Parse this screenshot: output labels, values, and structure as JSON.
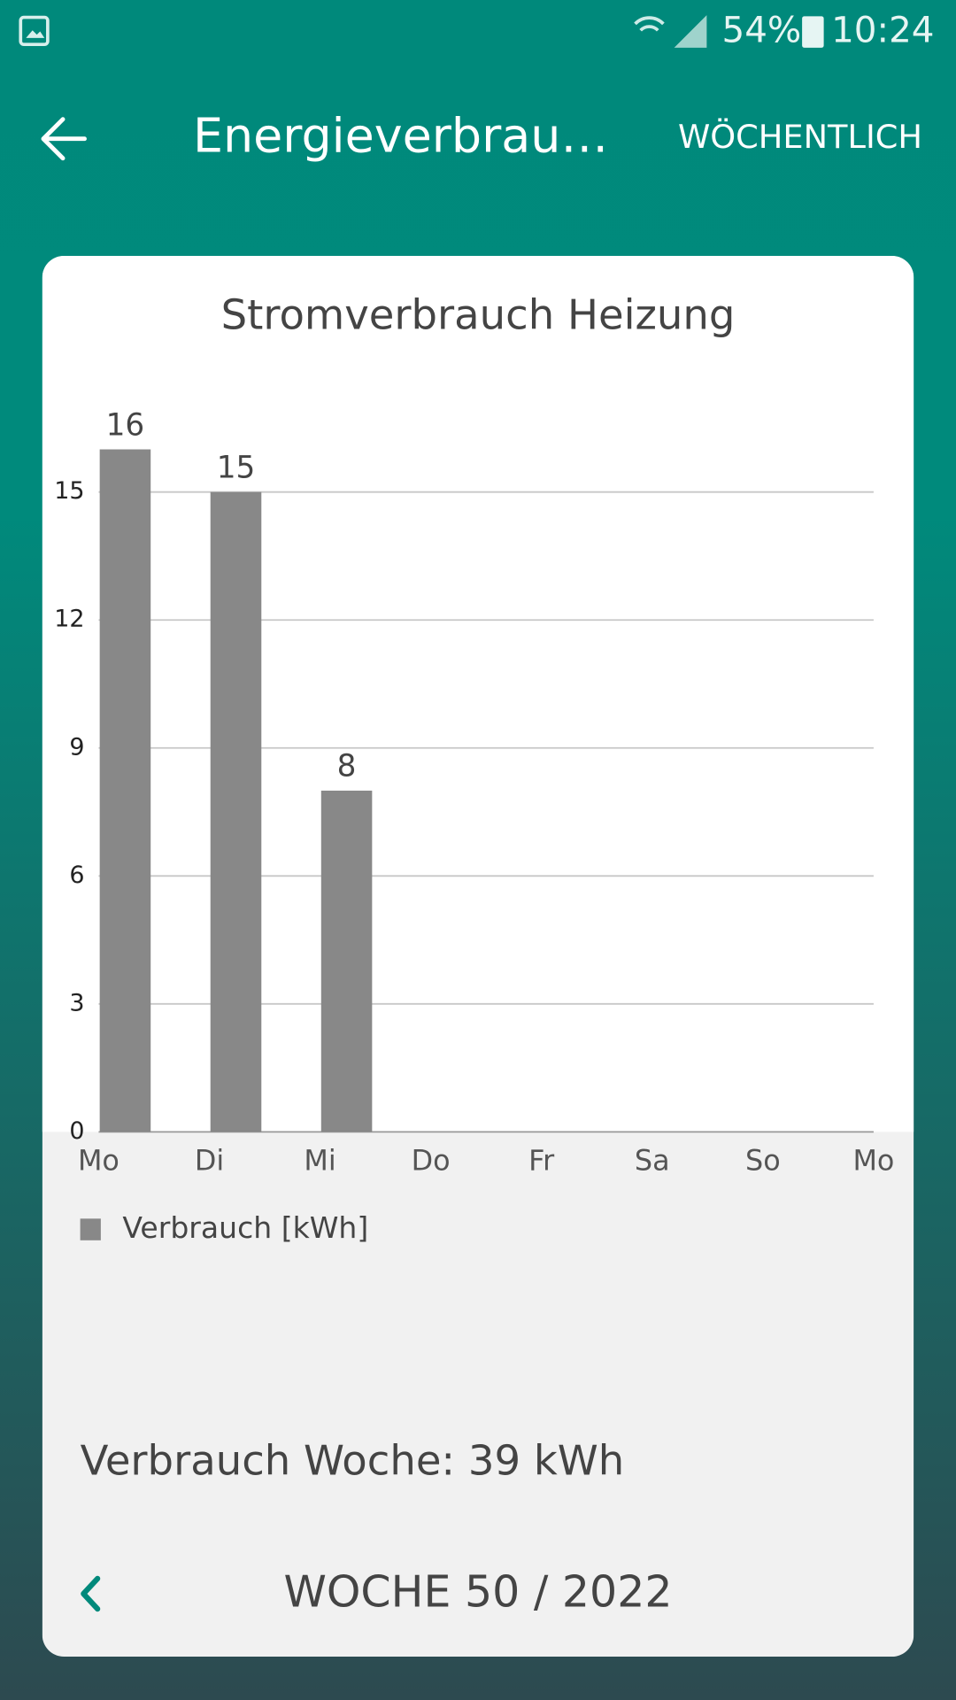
{
  "status_bar": {
    "battery": "54%",
    "time": "10:24"
  },
  "app_bar": {
    "title": "Energieverbrau…",
    "action": "WÖCHENTLICH"
  },
  "chart_data": {
    "type": "bar",
    "title": "Stromverbrauch Heizung",
    "categories": [
      "Mo",
      "Di",
      "Mi",
      "Do",
      "Fr",
      "Sa",
      "So",
      "Mo"
    ],
    "series": [
      {
        "name": "Verbrauch [kWh]",
        "color": "#888888",
        "values": [
          16,
          15,
          8,
          null,
          null,
          null,
          null,
          null
        ]
      }
    ],
    "ylim": [
      0,
      16.8
    ],
    "yticks": [
      0,
      3,
      6,
      9,
      12,
      15
    ],
    "grid": true,
    "legend": "bottom-left"
  },
  "summary": "Verbrauch Woche: 39 kWh",
  "week_nav": {
    "label": "WOCHE 50 / 2022"
  }
}
